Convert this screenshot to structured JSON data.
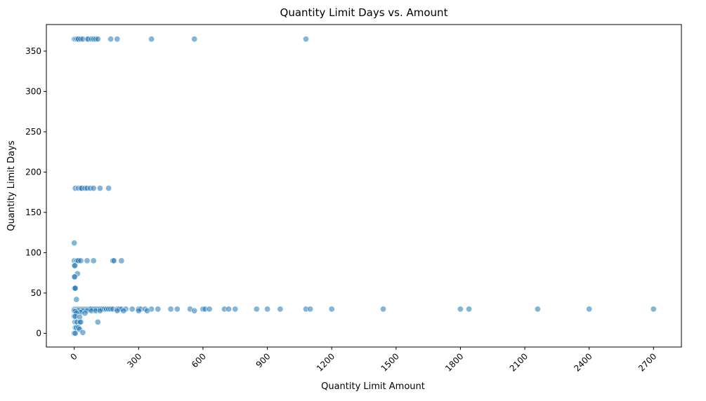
{
  "chart_data": {
    "type": "scatter",
    "title": "Quantity Limit Days vs. Amount",
    "xlabel": "Quantity Limit Amount",
    "ylabel": "Quantity Limit Days",
    "xlim": [
      -130,
      2830
    ],
    "ylim": [
      -17,
      383
    ],
    "x_ticks": [
      0,
      300,
      600,
      900,
      1200,
      1500,
      1800,
      2100,
      2400,
      2700
    ],
    "x_tick_labels": [
      "0",
      "300",
      "600",
      "900",
      "1200",
      "1500",
      "1800",
      "2100",
      "2400",
      "2700"
    ],
    "y_ticks": [
      0,
      50,
      100,
      150,
      200,
      250,
      300,
      350
    ],
    "y_tick_labels": [
      "0",
      "50",
      "100",
      "150",
      "200",
      "250",
      "300",
      "350"
    ],
    "x_tick_rotation_deg": -45,
    "grid": false,
    "legend": "none",
    "marker_color": "#1f77b4",
    "marker_alpha": 0.55,
    "points": [
      [
        0,
        365
      ],
      [
        5,
        365
      ],
      [
        10,
        365
      ],
      [
        15,
        365
      ],
      [
        20,
        365
      ],
      [
        30,
        365
      ],
      [
        40,
        365
      ],
      [
        60,
        365
      ],
      [
        65,
        365
      ],
      [
        80,
        365
      ],
      [
        90,
        365
      ],
      [
        100,
        365
      ],
      [
        110,
        365
      ],
      [
        170,
        365
      ],
      [
        200,
        365
      ],
      [
        360,
        365
      ],
      [
        560,
        365
      ],
      [
        1080,
        365
      ],
      [
        5,
        180
      ],
      [
        20,
        180
      ],
      [
        30,
        180
      ],
      [
        35,
        180
      ],
      [
        50,
        180
      ],
      [
        60,
        180
      ],
      [
        75,
        180
      ],
      [
        90,
        180
      ],
      [
        120,
        180
      ],
      [
        160,
        180
      ],
      [
        0,
        112
      ],
      [
        0,
        90
      ],
      [
        10,
        90
      ],
      [
        15,
        90
      ],
      [
        20,
        90
      ],
      [
        30,
        90
      ],
      [
        60,
        90
      ],
      [
        90,
        90
      ],
      [
        180,
        90
      ],
      [
        185,
        90
      ],
      [
        220,
        90
      ],
      [
        0,
        84
      ],
      [
        3,
        84
      ],
      [
        15,
        74
      ],
      [
        0,
        70
      ],
      [
        2,
        70
      ],
      [
        0,
        56
      ],
      [
        2,
        56
      ],
      [
        5,
        56
      ],
      [
        10,
        42
      ],
      [
        0,
        30
      ],
      [
        5,
        30
      ],
      [
        10,
        30
      ],
      [
        15,
        30
      ],
      [
        20,
        30
      ],
      [
        25,
        30
      ],
      [
        30,
        30
      ],
      [
        35,
        30
      ],
      [
        40,
        30
      ],
      [
        45,
        30
      ],
      [
        50,
        30
      ],
      [
        55,
        30
      ],
      [
        60,
        30
      ],
      [
        65,
        30
      ],
      [
        70,
        30
      ],
      [
        75,
        30
      ],
      [
        80,
        30
      ],
      [
        90,
        30
      ],
      [
        100,
        30
      ],
      [
        110,
        30
      ],
      [
        120,
        30
      ],
      [
        130,
        30
      ],
      [
        140,
        30
      ],
      [
        150,
        30
      ],
      [
        160,
        30
      ],
      [
        170,
        30
      ],
      [
        180,
        30
      ],
      [
        200,
        30
      ],
      [
        210,
        30
      ],
      [
        220,
        30
      ],
      [
        240,
        30
      ],
      [
        270,
        30
      ],
      [
        300,
        30
      ],
      [
        310,
        30
      ],
      [
        330,
        30
      ],
      [
        360,
        30
      ],
      [
        390,
        30
      ],
      [
        450,
        30
      ],
      [
        480,
        30
      ],
      [
        540,
        30
      ],
      [
        600,
        30
      ],
      [
        610,
        30
      ],
      [
        630,
        30
      ],
      [
        700,
        30
      ],
      [
        720,
        30
      ],
      [
        750,
        30
      ],
      [
        850,
        30
      ],
      [
        900,
        30
      ],
      [
        960,
        30
      ],
      [
        1080,
        30
      ],
      [
        1100,
        30
      ],
      [
        1200,
        30
      ],
      [
        1440,
        30
      ],
      [
        1800,
        30
      ],
      [
        1840,
        30
      ],
      [
        2160,
        30
      ],
      [
        2400,
        30
      ],
      [
        2700,
        30
      ],
      [
        0,
        28
      ],
      [
        20,
        28
      ],
      [
        40,
        28
      ],
      [
        60,
        28
      ],
      [
        80,
        28
      ],
      [
        100,
        28
      ],
      [
        120,
        28
      ],
      [
        200,
        28
      ],
      [
        230,
        28
      ],
      [
        300,
        28
      ],
      [
        340,
        28
      ],
      [
        560,
        28
      ],
      [
        5,
        27
      ],
      [
        30,
        26
      ],
      [
        10,
        25
      ],
      [
        50,
        25
      ],
      [
        0,
        21
      ],
      [
        5,
        21
      ],
      [
        25,
        20
      ],
      [
        3,
        14
      ],
      [
        10,
        14
      ],
      [
        15,
        14
      ],
      [
        25,
        14
      ],
      [
        30,
        14
      ],
      [
        110,
        14
      ],
      [
        5,
        7
      ],
      [
        10,
        7
      ],
      [
        20,
        7
      ],
      [
        25,
        5
      ],
      [
        0,
        0
      ],
      [
        5,
        0
      ],
      [
        40,
        1
      ]
    ]
  }
}
